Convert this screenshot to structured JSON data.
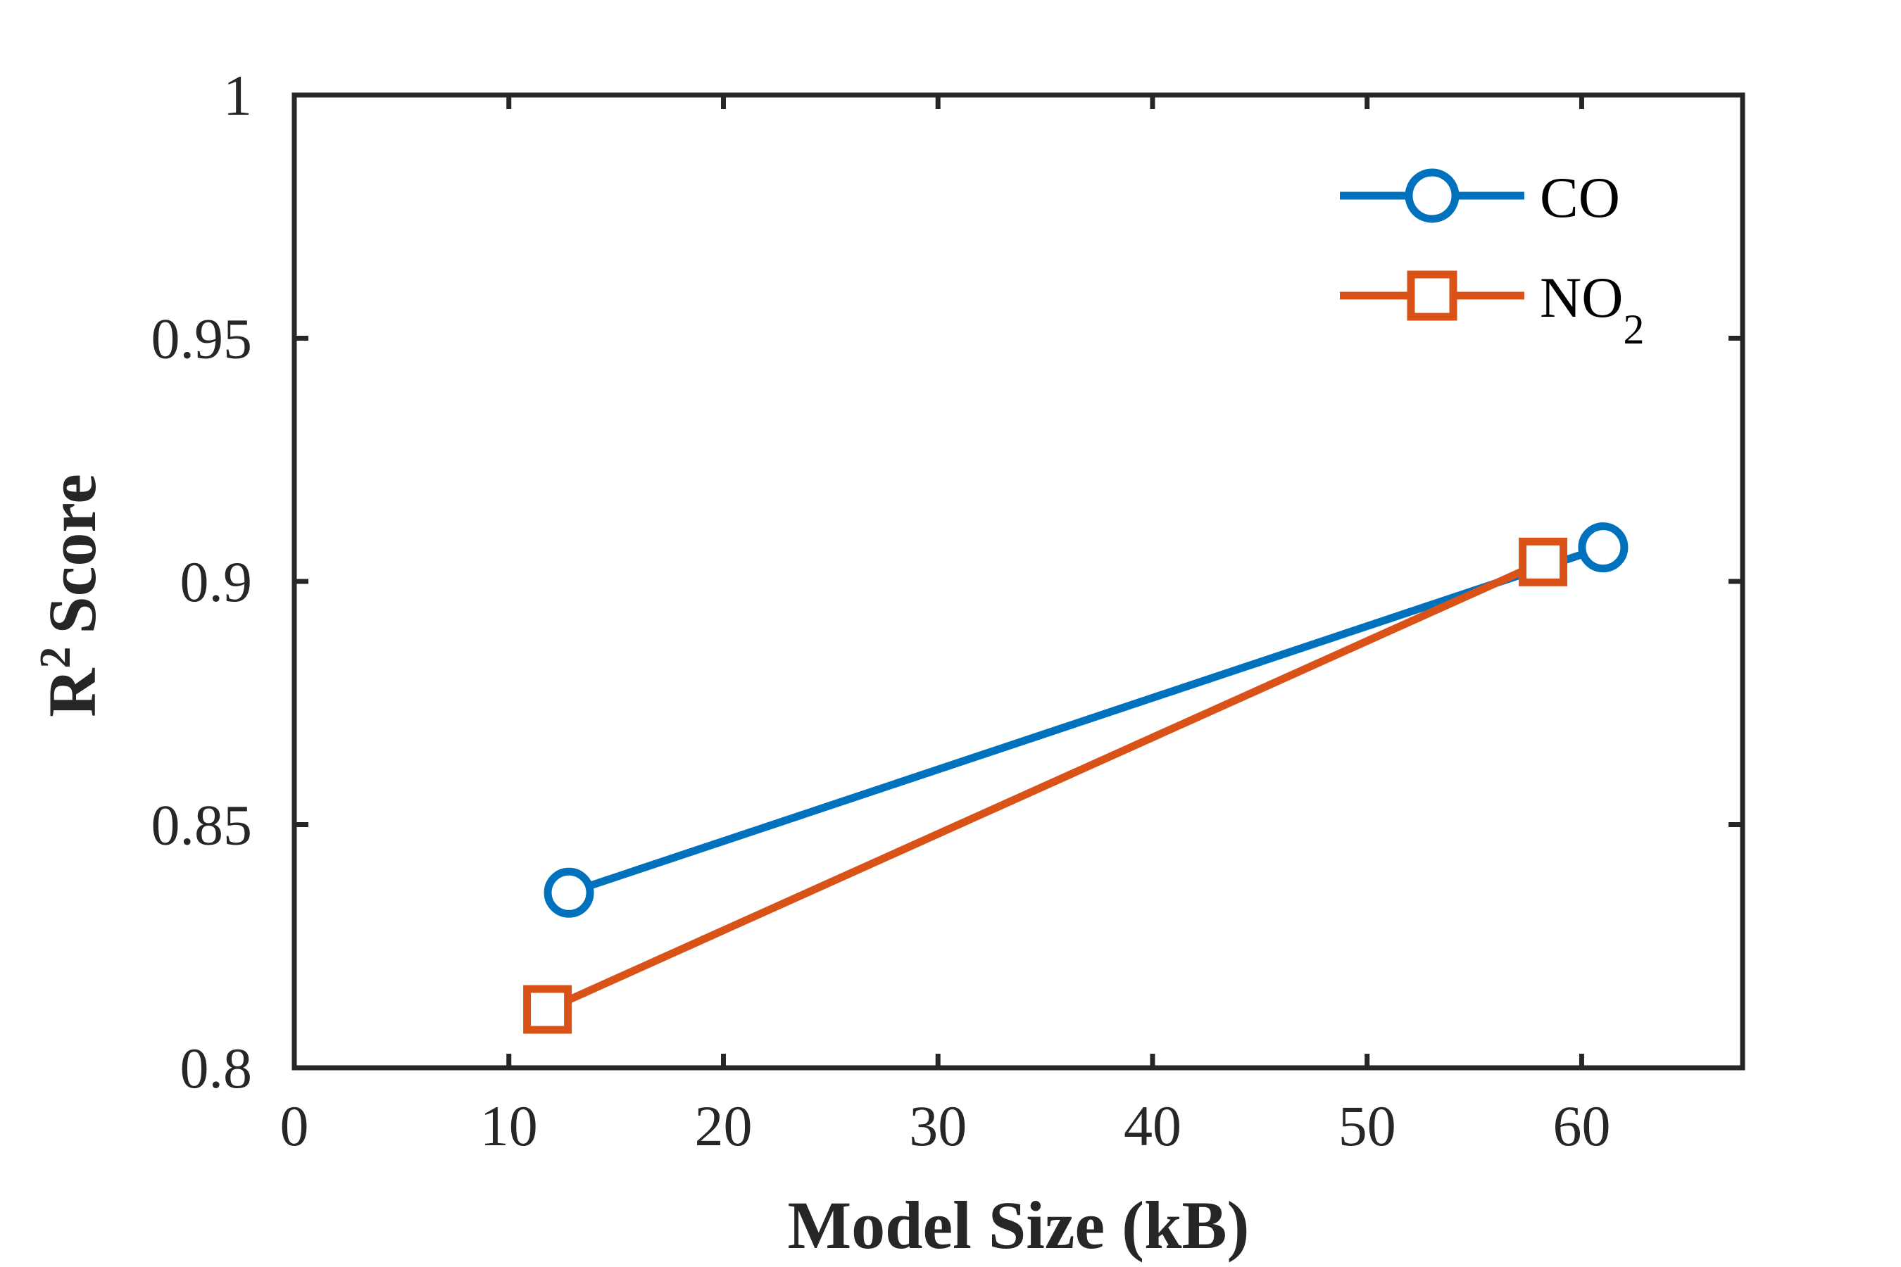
{
  "chart_data": {
    "type": "line",
    "title": "",
    "xlabel": "Model Size (kB)",
    "ylabel": "Score",
    "ylabel_base": "R",
    "ylabel_sup": "2",
    "xlim": [
      0,
      67.5
    ],
    "ylim": [
      0.8,
      1.0
    ],
    "xticks": [
      0,
      10,
      20,
      30,
      40,
      50,
      60
    ],
    "xtick_labels": [
      "0",
      "10",
      "20",
      "30",
      "40",
      "50",
      "60"
    ],
    "yticks": [
      0.8,
      0.85,
      0.9,
      0.95,
      1.0
    ],
    "ytick_labels": [
      "0.8",
      "0.85",
      "0.9",
      "0.95",
      "1"
    ],
    "grid": false,
    "legend_position": "top-right",
    "series": [
      {
        "name": "CO",
        "name_base": "CO",
        "name_sub": "",
        "color": "#0072BD",
        "marker": "circle",
        "x": [
          12.8,
          61.0
        ],
        "y": [
          0.836,
          0.907
        ]
      },
      {
        "name": "NO2",
        "name_base": "NO",
        "name_sub": "2",
        "color": "#D95319",
        "marker": "square",
        "x": [
          11.8,
          58.2
        ],
        "y": [
          0.812,
          0.904
        ]
      }
    ]
  },
  "colors": {
    "axis": "#262626",
    "background": "#ffffff"
  }
}
